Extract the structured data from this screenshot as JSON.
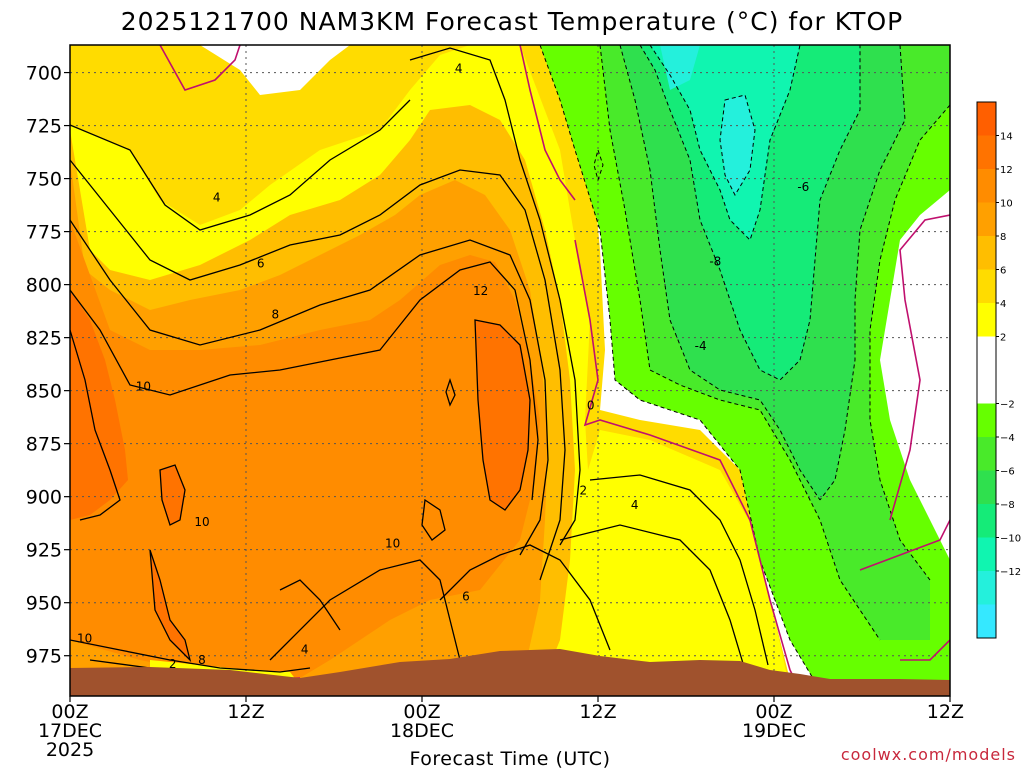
{
  "chart_data": {
    "type": "heatmap",
    "title": "2025121700 NAM3KM Forecast Temperature (°C) for KTOP",
    "xlabel": "Forecast Time (UTC)",
    "ylabel": "",
    "x_ticks": [
      {
        "hour": 0,
        "time": "00Z",
        "date": "17DEC",
        "year": "2025"
      },
      {
        "hour": 12,
        "time": "12Z",
        "date": "",
        "year": ""
      },
      {
        "hour": 24,
        "time": "00Z",
        "date": "18DEC",
        "year": ""
      },
      {
        "hour": 36,
        "time": "12Z",
        "date": "",
        "year": ""
      },
      {
        "hour": 48,
        "time": "00Z",
        "date": "19DEC",
        "year": ""
      },
      {
        "hour": 60,
        "time": "12Z",
        "date": "",
        "year": ""
      }
    ],
    "xlim": [
      0,
      60
    ],
    "y_ticks": [
      700,
      725,
      750,
      775,
      800,
      825,
      850,
      875,
      900,
      925,
      950,
      975
    ],
    "ylim": [
      687,
      994
    ],
    "grid": true,
    "colorbar": {
      "placement": "right",
      "bands": [
        {
          "min": -16,
          "max": -14,
          "color": "#35e8ff"
        },
        {
          "min": -14,
          "max": -12,
          "color": "#24f0dc"
        },
        {
          "min": -12,
          "max": -10,
          "color": "#10f5b0"
        },
        {
          "min": -10,
          "max": -8,
          "color": "#15eb78"
        },
        {
          "min": -8,
          "max": -6,
          "color": "#2fe04e"
        },
        {
          "min": -6,
          "max": -4,
          "color": "#49ea2a"
        },
        {
          "min": -4,
          "max": -2,
          "color": "#66ff00"
        },
        {
          "min": -2,
          "max": 2,
          "color": "#ffffff"
        },
        {
          "min": 2,
          "max": 4,
          "color": "#ffff00"
        },
        {
          "min": 4,
          "max": 6,
          "color": "#ffdc00"
        },
        {
          "min": 6,
          "max": 8,
          "color": "#ffbe00"
        },
        {
          "min": 8,
          "max": 10,
          "color": "#ffa000"
        },
        {
          "min": 10,
          "max": 12,
          "color": "#ff8c00"
        },
        {
          "min": 12,
          "max": 14,
          "color": "#ff7300"
        },
        {
          "min": 14,
          "max": 16,
          "color": "#ff5f00"
        }
      ],
      "tick_labels": [
        "14",
        "12",
        "10",
        "8",
        "6",
        "4",
        "2",
        "−2",
        "−4",
        "−6",
        "−8",
        "−10",
        "−12"
      ],
      "tick_values": [
        14,
        12,
        10,
        8,
        6,
        4,
        2,
        -2,
        -4,
        -6,
        -8,
        -10,
        -12
      ]
    },
    "contour_labels": [
      {
        "text": "4",
        "hour": 26.5,
        "p": 698
      },
      {
        "text": "4",
        "hour": 10.0,
        "p": 759
      },
      {
        "text": "6",
        "hour": 13.0,
        "p": 790
      },
      {
        "text": "8",
        "hour": 14.0,
        "p": 814
      },
      {
        "text": "10",
        "hour": 5.0,
        "p": 848
      },
      {
        "text": "12",
        "hour": 28.0,
        "p": 803
      },
      {
        "text": "10",
        "hour": 9.0,
        "p": 912
      },
      {
        "text": "10",
        "hour": 22.0,
        "p": 922
      },
      {
        "text": "6",
        "hour": 27.0,
        "p": 947
      },
      {
        "text": "0",
        "hour": 35.5,
        "p": 857
      },
      {
        "text": "2",
        "hour": 35.0,
        "p": 897
      },
      {
        "text": "4",
        "hour": 38.5,
        "p": 904
      },
      {
        "text": "-4",
        "hour": 43.0,
        "p": 829
      },
      {
        "text": "-8",
        "hour": 44.0,
        "p": 789
      },
      {
        "text": "-6",
        "hour": 50.0,
        "p": 754
      },
      {
        "text": "10",
        "hour": 1.0,
        "p": 967
      },
      {
        "text": "2",
        "hour": 7.0,
        "p": 979
      },
      {
        "text": "8",
        "hour": 9.0,
        "p": 977
      },
      {
        "text": "4",
        "hour": 16.0,
        "p": 972
      }
    ],
    "terrain_color": "#a0522d",
    "zero_contour_color": "#c0106e"
  },
  "credit": "coolwx.com/models"
}
